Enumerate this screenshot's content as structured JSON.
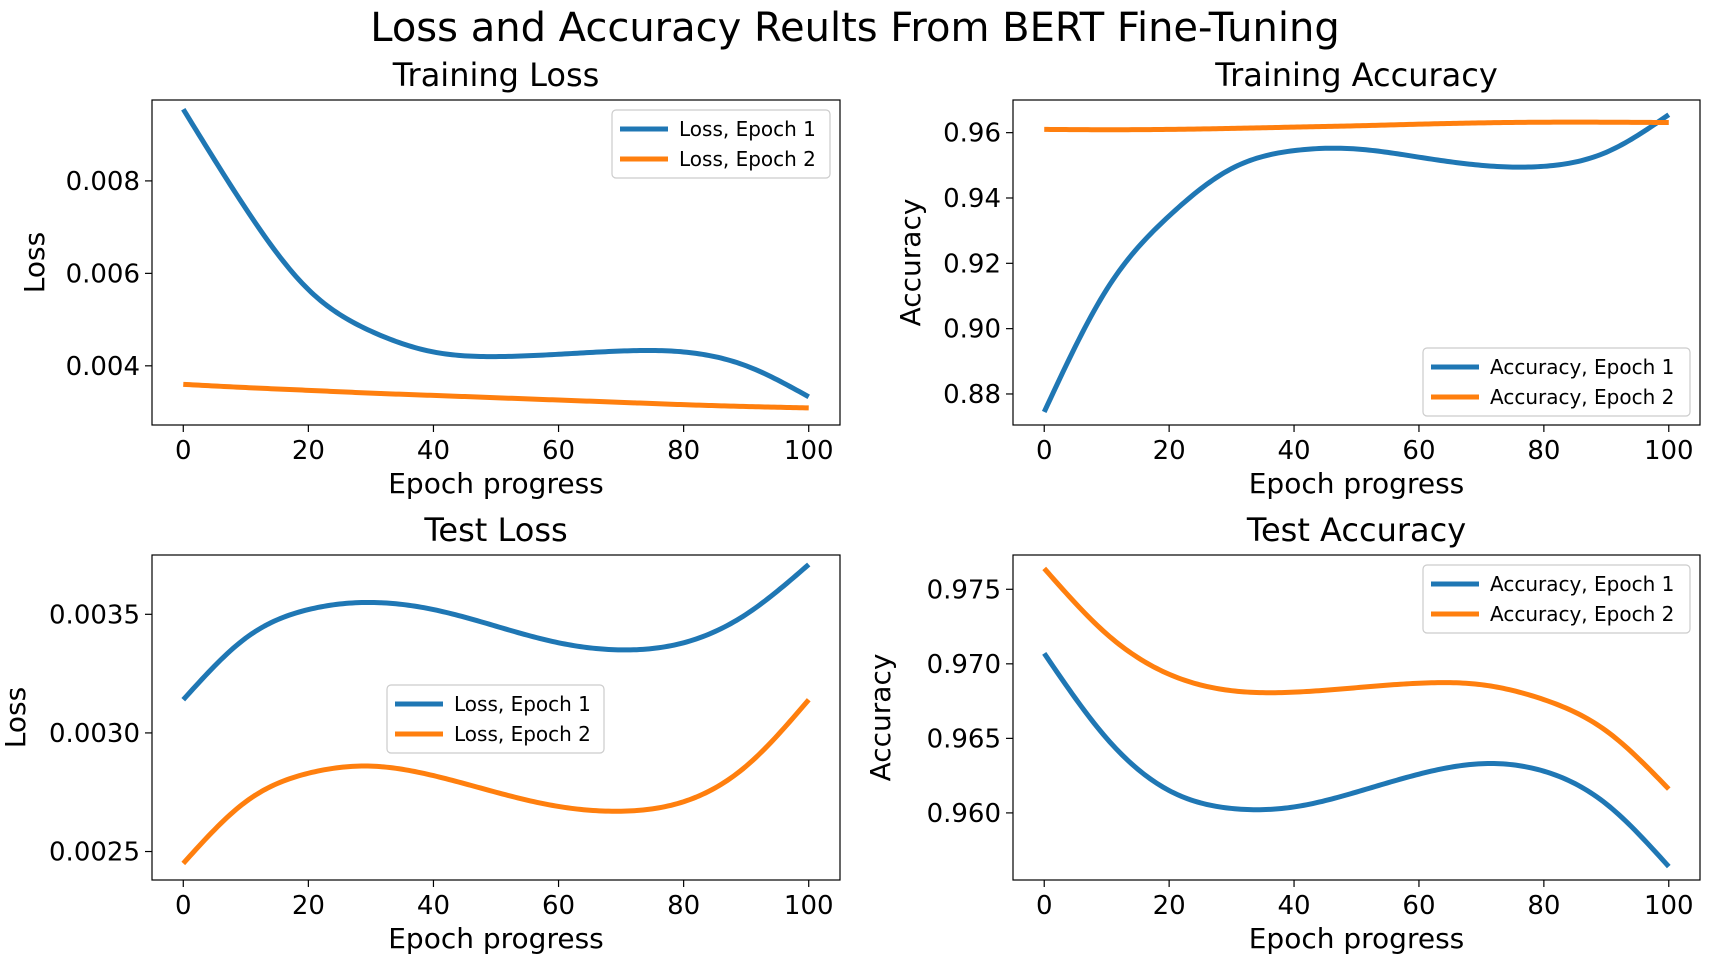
{
  "suptitle": "Loss and Accuracy Reults From BERT Fine-Tuning",
  "colors": {
    "epoch1": "#1f77b4",
    "epoch2": "#ff7f0e"
  },
  "chart_data": [
    {
      "type": "line",
      "title": "Training Loss",
      "xlabel": "Epoch progress",
      "ylabel": "Loss",
      "xlim": [
        -5,
        105
      ],
      "ylim": [
        0.00272,
        0.00975
      ],
      "xticks": [
        0,
        20,
        40,
        60,
        80,
        100
      ],
      "yticks": [
        0.004,
        0.006,
        0.008
      ],
      "ytick_labels": [
        "0.004",
        "0.006",
        "0.008"
      ],
      "legend": "upper-right",
      "x": [
        0,
        10,
        20,
        30,
        40,
        50,
        60,
        70,
        80,
        90,
        100
      ],
      "series": [
        {
          "name": "Loss, Epoch 1",
          "color": "#1f77b4",
          "values": [
            0.00955,
            0.0074,
            0.00565,
            0.00475,
            0.0043,
            0.0042,
            0.00425,
            0.00432,
            0.0043,
            0.004,
            0.00333
          ]
        },
        {
          "name": "Loss, Epoch 2",
          "color": "#ff7f0e",
          "values": [
            0.0036,
            0.00353,
            0.00347,
            0.00341,
            0.00336,
            0.00331,
            0.00326,
            0.00321,
            0.00316,
            0.00312,
            0.00309
          ]
        }
      ]
    },
    {
      "type": "line",
      "title": "Training Accuracy",
      "xlabel": "Epoch progress",
      "ylabel": "Accuracy",
      "xlim": [
        -5,
        105
      ],
      "ylim": [
        0.8705,
        0.97
      ],
      "xticks": [
        0,
        20,
        40,
        60,
        80,
        100
      ],
      "yticks": [
        0.88,
        0.9,
        0.92,
        0.94,
        0.96
      ],
      "ytick_labels": [
        "0.88",
        "0.90",
        "0.92",
        "0.94",
        "0.96"
      ],
      "legend": "lower-right",
      "x": [
        0,
        10,
        20,
        30,
        40,
        50,
        60,
        70,
        80,
        90,
        100
      ],
      "series": [
        {
          "name": "Accuracy, Epoch 1",
          "color": "#1f77b4",
          "values": [
            0.8745,
            0.912,
            0.9345,
            0.949,
            0.9545,
            0.955,
            0.9525,
            0.95,
            0.9497,
            0.954,
            0.9655
          ]
        },
        {
          "name": "Accuracy, Epoch 2",
          "color": "#ff7f0e",
          "values": [
            0.961,
            0.9609,
            0.961,
            0.9613,
            0.9617,
            0.9621,
            0.9626,
            0.963,
            0.9632,
            0.9632,
            0.9631
          ]
        }
      ]
    },
    {
      "type": "line",
      "title": "Test Loss",
      "xlabel": "Epoch progress",
      "ylabel": "Loss",
      "xlim": [
        -5,
        105
      ],
      "ylim": [
        0.00238,
        0.00375
      ],
      "xticks": [
        0,
        20,
        40,
        60,
        80,
        100
      ],
      "yticks": [
        0.0025,
        0.003,
        0.0035
      ],
      "ytick_labels": [
        "0.0025",
        "0.0030",
        "0.0035"
      ],
      "legend": "center",
      "x": [
        0,
        10,
        20,
        30,
        40,
        50,
        60,
        70,
        80,
        90,
        100
      ],
      "series": [
        {
          "name": "Loss, Epoch 1",
          "color": "#1f77b4",
          "values": [
            0.00314,
            0.0034,
            0.00352,
            0.00355,
            0.00352,
            0.00345,
            0.00338,
            0.00335,
            0.00338,
            0.0035,
            0.00371
          ]
        },
        {
          "name": "Loss, Epoch 2",
          "color": "#ff7f0e",
          "values": [
            0.00245,
            0.00271,
            0.00283,
            0.00286,
            0.00282,
            0.00275,
            0.00269,
            0.00267,
            0.00271,
            0.00286,
            0.00314
          ]
        }
      ]
    },
    {
      "type": "line",
      "title": "Test Accuracy",
      "xlabel": "Epoch progress",
      "ylabel": "Accuracy",
      "xlim": [
        -5,
        105
      ],
      "ylim": [
        0.9555,
        0.9773
      ],
      "xticks": [
        0,
        20,
        40,
        60,
        80,
        100
      ],
      "yticks": [
        0.96,
        0.965,
        0.97,
        0.975
      ],
      "ytick_labels": [
        "0.960",
        "0.965",
        "0.970",
        "0.975"
      ],
      "legend": "upper-right",
      "x": [
        0,
        10,
        20,
        30,
        40,
        50,
        60,
        70,
        80,
        90,
        100
      ],
      "series": [
        {
          "name": "Accuracy, Epoch 1",
          "color": "#1f77b4",
          "values": [
            0.9707,
            0.965,
            0.9615,
            0.9603,
            0.9604,
            0.9614,
            0.9626,
            0.9633,
            0.9628,
            0.9606,
            0.9564
          ]
        },
        {
          "name": "Accuracy, Epoch 2",
          "color": "#ff7f0e",
          "values": [
            0.9764,
            0.972,
            0.9693,
            0.9682,
            0.9681,
            0.9684,
            0.9687,
            0.9686,
            0.9676,
            0.9655,
            0.9616
          ]
        }
      ]
    }
  ]
}
